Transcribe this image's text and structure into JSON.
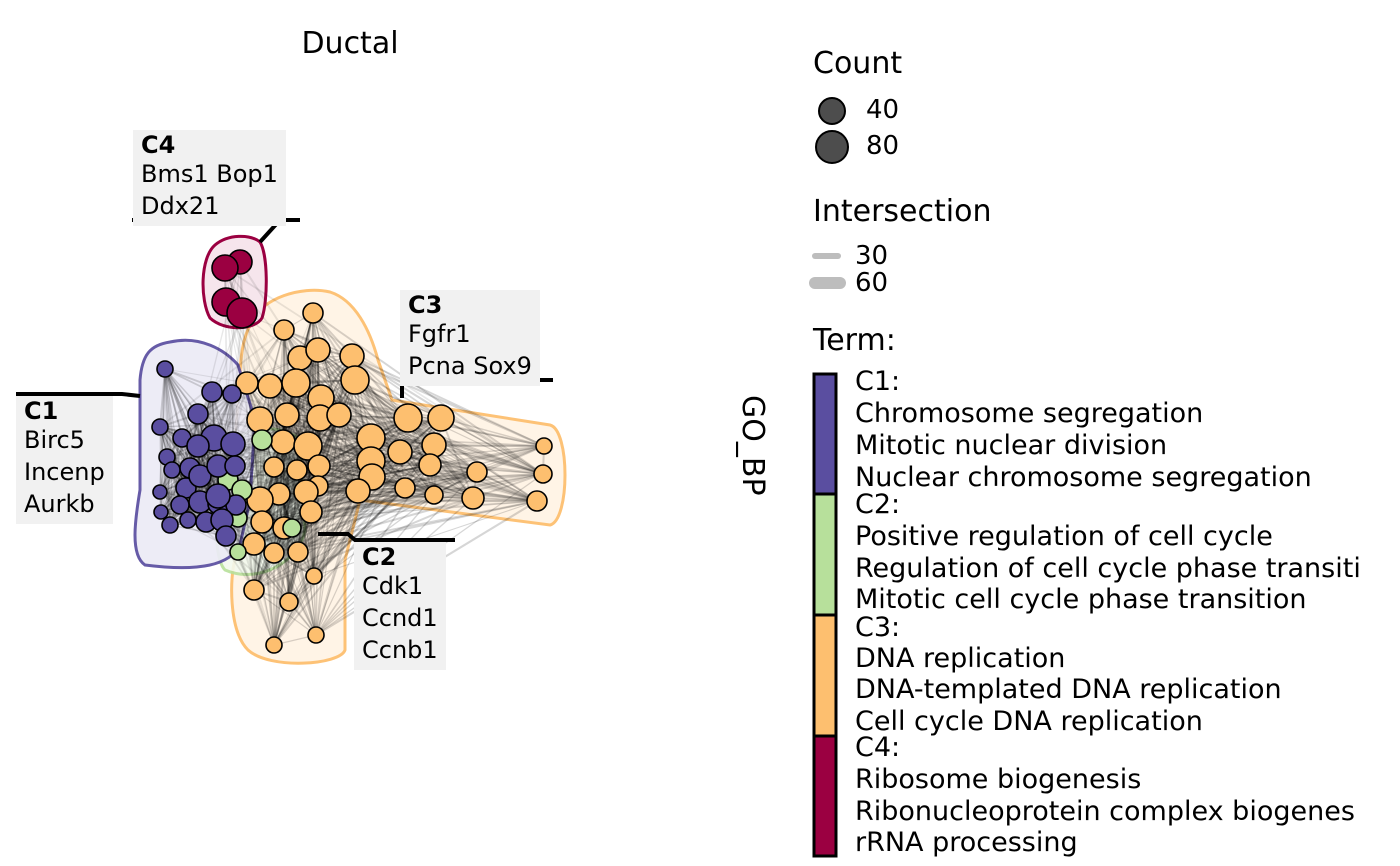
{
  "title": "Ductal",
  "axis_label": "GO_BP",
  "clusters": [
    {
      "id": "C1",
      "genes": [
        "Birc5",
        "Incenp",
        "Aurkb"
      ],
      "color": "#5a4ea0",
      "fill": "#eeecf6"
    },
    {
      "id": "C2",
      "genes": [
        "Cdk1",
        "Ccnd1",
        "Ccnb1"
      ],
      "color": "#b7e09b",
      "fill": "#f4faef"
    },
    {
      "id": "C3",
      "genes": [
        "Fgfr1",
        "Pcna Sox9"
      ],
      "color": "#fdbf6f",
      "fill": "#fff6ea"
    },
    {
      "id": "C4",
      "genes": [
        "Bms1 Bop1",
        "Ddx21"
      ],
      "color": "#9b0041",
      "fill": "#f7e6ed"
    }
  ],
  "legend": {
    "count": {
      "title": "Count",
      "items": [
        "40",
        "80"
      ]
    },
    "intersection": {
      "title": "Intersection",
      "items": [
        "30",
        "60"
      ]
    },
    "term": {
      "title": "Term:",
      "groups": [
        {
          "header": "C1:",
          "terms": [
            "Chromosome segregation",
            "Mitotic nuclear division",
            "Nuclear chromosome segregation"
          ],
          "color": "#5a4ea0"
        },
        {
          "header": "C2:",
          "terms": [
            "Positive regulation of cell cycle",
            "Regulation of cell cycle phase transiti",
            "Mitotic cell cycle phase transition"
          ],
          "color": "#b7e09b"
        },
        {
          "header": "C3:",
          "terms": [
            "DNA replication",
            "DNA-templated DNA replication",
            "Cell cycle DNA replication"
          ],
          "color": "#fdbf6f"
        },
        {
          "header": "C4:",
          "terms": [
            "Ribosome biogenesis",
            "Ribonucleoprotein complex biogenes",
            "rRNA processing"
          ],
          "color": "#9b0041"
        }
      ]
    }
  }
}
